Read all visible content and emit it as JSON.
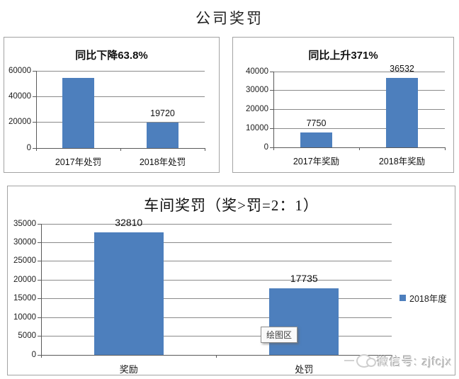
{
  "page": {
    "title": "公司奖罚"
  },
  "colors": {
    "bar": "#4d7fbd",
    "gridline": "#8a8a8a",
    "axis": "#5a5a5a",
    "panel_border": "#a3a3a3",
    "watermark": "#c9c9c9"
  },
  "tooltip": {
    "label": "绘图区"
  },
  "watermark": {
    "icon": "wechat-icon",
    "label": "微信号: zjfcjx"
  },
  "chart_data": [
    {
      "id": "penalty-yoy",
      "type": "bar",
      "title": "同比下降63.8%",
      "categories": [
        "2017年处罚",
        "2018年处罚"
      ],
      "values": [
        54475,
        19720
      ],
      "data_labels": [
        "",
        "19720"
      ],
      "ylim": [
        0,
        60000
      ],
      "yticks": [
        0,
        20000,
        40000,
        60000
      ],
      "grid": true,
      "legend": null
    },
    {
      "id": "reward-yoy",
      "type": "bar",
      "title": "同比上升371%",
      "categories": [
        "2017年奖励",
        "2018年奖励"
      ],
      "values": [
        7750,
        36532
      ],
      "data_labels": [
        "7750",
        "36532"
      ],
      "ylim": [
        0,
        40000
      ],
      "yticks": [
        0,
        10000,
        20000,
        30000,
        40000
      ],
      "grid": true,
      "legend": null
    },
    {
      "id": "workshop-reward-penalty",
      "type": "bar",
      "title": "车间奖罚（奖>罚=2：1）",
      "categories": [
        "奖励",
        "处罚"
      ],
      "values": [
        32810,
        17735
      ],
      "data_labels": [
        "32810",
        "17735"
      ],
      "ylim": [
        0,
        35000
      ],
      "yticks": [
        0,
        5000,
        10000,
        15000,
        20000,
        25000,
        30000,
        35000
      ],
      "grid": true,
      "legend": [
        "2018年度"
      ],
      "legend_position": "right"
    }
  ]
}
